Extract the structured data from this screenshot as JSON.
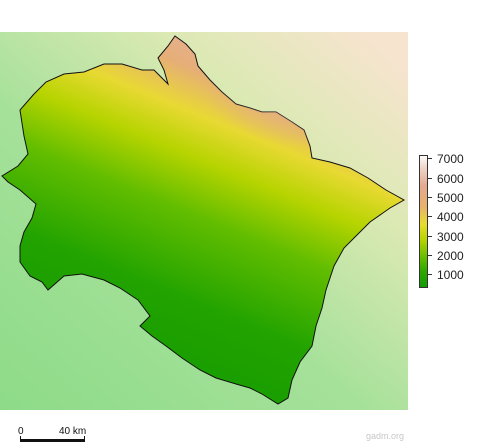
{
  "legend": {
    "title": "",
    "units": "",
    "ticks": [
      "7000",
      "6000",
      "5000",
      "4000",
      "3000",
      "2000",
      "1000"
    ],
    "tick_values": [
      7000,
      6000,
      5000,
      4000,
      3000,
      2000,
      1000
    ],
    "colors": [
      "#fdfbfa",
      "#f0d0c4",
      "#e3a98f",
      "#e8b06f",
      "#e9dc2f",
      "#b6d300",
      "#6fbf00",
      "#2ea800",
      "#129b00"
    ]
  },
  "scalebar": {
    "zero_label": "0",
    "distance_label": "40 km"
  },
  "credit": "gadm.org",
  "map": {
    "type": "elevation-relief",
    "outside_colors": [
      "#8fdc8a",
      "#a8e29a",
      "#d6e9b4",
      "#f5e6c9"
    ]
  }
}
